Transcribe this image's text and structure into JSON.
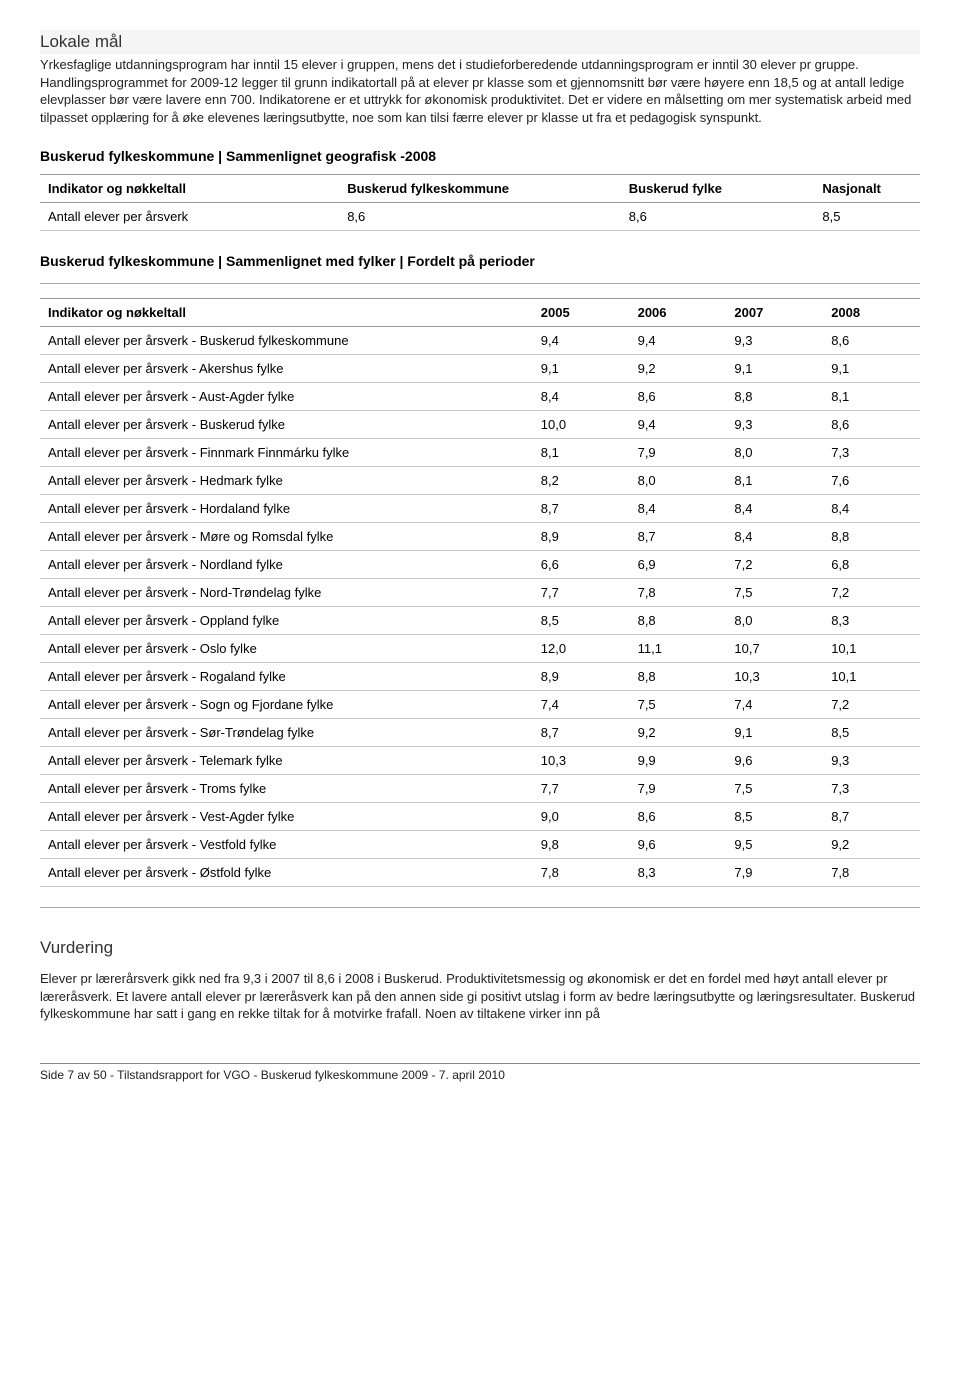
{
  "section1": {
    "title": "Lokale mål",
    "body": "Yrkesfaglige utdanningsprogram har inntil 15 elever i gruppen, mens det i studieforberedende utdanningsprogram er inntil 30 elever pr gruppe. Handlingsprogrammet for 2009-12 legger til grunn indikatortall på at elever pr klasse som et gjennomsnitt bør være høyere enn 18,5 og at antall ledige elevplasser bør være lavere enn 700. Indikatorene er et uttrykk for økonomisk produktivitet. Det er videre en målsetting om mer systematisk arbeid med tilpasset opplæring for å øke elevenes læringsutbytte, noe som kan tilsi færre elever pr klasse ut fra et pedagogisk synspunkt."
  },
  "table1": {
    "heading": "Buskerud fylkeskommune | Sammenlignet geografisk -2008",
    "columns": [
      "Indikator og nøkkeltall",
      "Buskerud fylkeskommune",
      "Buskerud fylke",
      "Nasjonalt"
    ],
    "rows": [
      [
        "Antall elever per årsverk",
        "8,6",
        "8,6",
        "8,5"
      ]
    ]
  },
  "table2": {
    "heading": "Buskerud fylkeskommune | Sammenlignet med fylker | Fordelt på perioder",
    "columns": [
      "Indikator og nøkkeltall",
      "2005",
      "2006",
      "2007",
      "2008"
    ],
    "rows": [
      [
        "Antall elever per årsverk - Buskerud fylkeskommune",
        "9,4",
        "9,4",
        "9,3",
        "8,6"
      ],
      [
        "Antall elever per årsverk - Akershus fylke",
        "9,1",
        "9,2",
        "9,1",
        "9,1"
      ],
      [
        "Antall elever per årsverk - Aust-Agder fylke",
        "8,4",
        "8,6",
        "8,8",
        "8,1"
      ],
      [
        "Antall elever per årsverk - Buskerud fylke",
        "10,0",
        "9,4",
        "9,3",
        "8,6"
      ],
      [
        "Antall elever per årsverk - Finnmark Finnmárku fylke",
        "8,1",
        "7,9",
        "8,0",
        "7,3"
      ],
      [
        "Antall elever per årsverk - Hedmark fylke",
        "8,2",
        "8,0",
        "8,1",
        "7,6"
      ],
      [
        "Antall elever per årsverk - Hordaland fylke",
        "8,7",
        "8,4",
        "8,4",
        "8,4"
      ],
      [
        "Antall elever per årsverk - Møre og Romsdal fylke",
        "8,9",
        "8,7",
        "8,4",
        "8,8"
      ],
      [
        "Antall elever per årsverk - Nordland fylke",
        "6,6",
        "6,9",
        "7,2",
        "6,8"
      ],
      [
        "Antall elever per årsverk - Nord-Trøndelag fylke",
        "7,7",
        "7,8",
        "7,5",
        "7,2"
      ],
      [
        "Antall elever per årsverk - Oppland fylke",
        "8,5",
        "8,8",
        "8,0",
        "8,3"
      ],
      [
        "Antall elever per årsverk - Oslo fylke",
        "12,0",
        "11,1",
        "10,7",
        "10,1"
      ],
      [
        "Antall elever per årsverk - Rogaland fylke",
        "8,9",
        "8,8",
        "10,3",
        "10,1"
      ],
      [
        "Antall elever per årsverk - Sogn og Fjordane fylke",
        "7,4",
        "7,5",
        "7,4",
        "7,2"
      ],
      [
        "Antall elever per årsverk - Sør-Trøndelag fylke",
        "8,7",
        "9,2",
        "9,1",
        "8,5"
      ],
      [
        "Antall elever per årsverk - Telemark fylke",
        "10,3",
        "9,9",
        "9,6",
        "9,3"
      ],
      [
        "Antall elever per årsverk - Troms fylke",
        "7,7",
        "7,9",
        "7,5",
        "7,3"
      ],
      [
        "Antall elever per årsverk - Vest-Agder fylke",
        "9,0",
        "8,6",
        "8,5",
        "8,7"
      ],
      [
        "Antall elever per årsverk - Vestfold fylke",
        "9,8",
        "9,6",
        "9,5",
        "9,2"
      ],
      [
        "Antall elever per årsverk - Østfold fylke",
        "7,8",
        "8,3",
        "7,9",
        "7,8"
      ]
    ]
  },
  "vurdering": {
    "title": "Vurdering",
    "body": "Elever pr lærerårsverk gikk ned fra 9,3 i 2007 til 8,6 i 2008 i Buskerud. Produktivitetsmessig og økonomisk er det en fordel med høyt antall elever pr læreråsverk. Et lavere antall elever pr læreråsverk kan på den annen side gi positivt utslag i form av bedre læringsutbytte og læringsresultater. Buskerud fylkeskommune har satt i gang en rekke tiltak for å motvirke frafall. Noen av tiltakene virker inn på"
  },
  "footer": "Side 7 av 50 - Tilstandsrapport for VGO - Buskerud fylkeskommune 2009 - 7. april 2010"
}
